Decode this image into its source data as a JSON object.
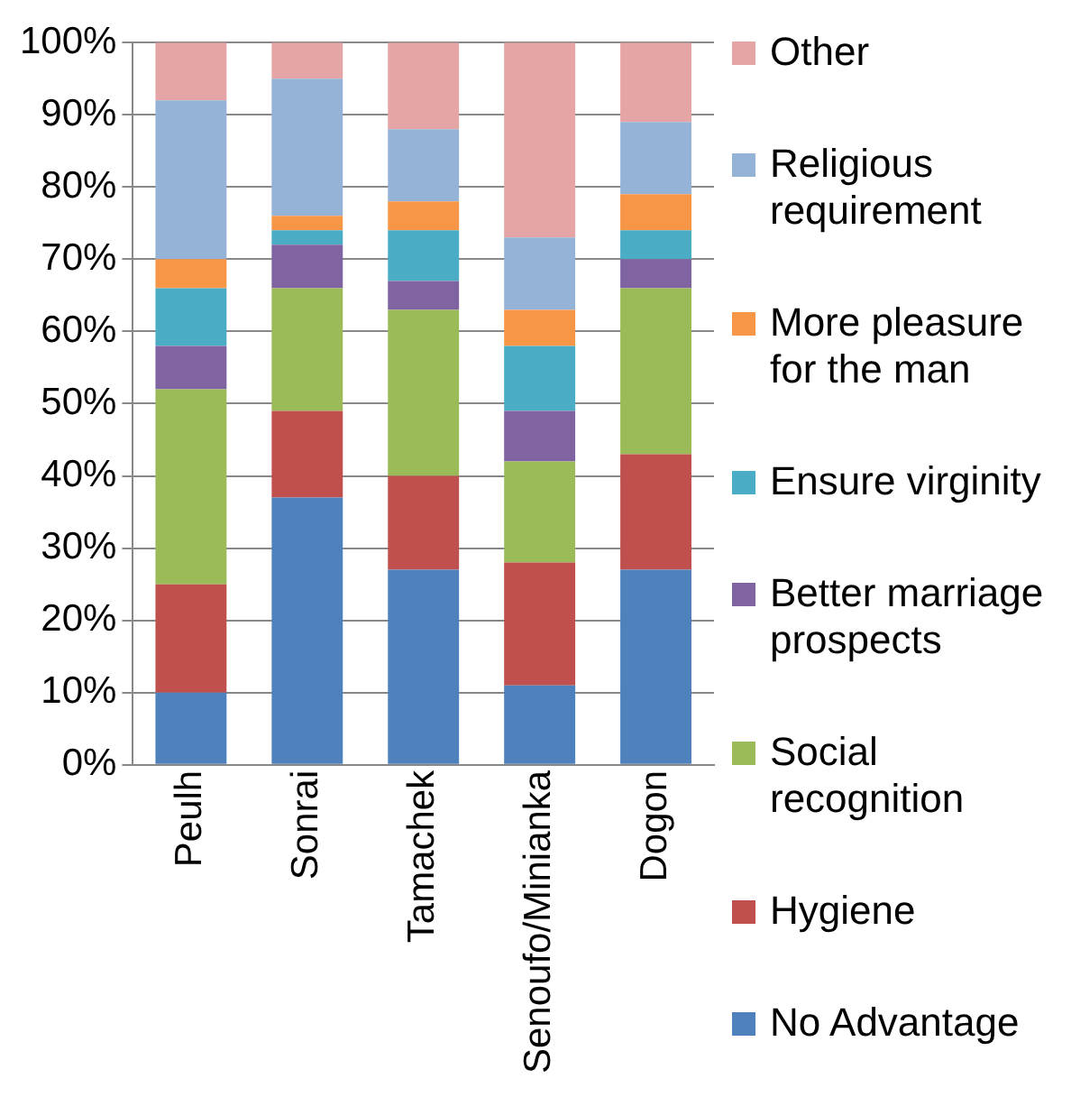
{
  "chart_data": {
    "type": "bar",
    "stacked": true,
    "categories": [
      "Peulh",
      "Sonrai",
      "Tamachek",
      "Senoufo/Minianka",
      "Dogon"
    ],
    "ylim": [
      0,
      100
    ],
    "yticks": [
      {
        "value": 0,
        "label": "0%"
      },
      {
        "value": 10,
        "label": "10%"
      },
      {
        "value": 20,
        "label": "20%"
      },
      {
        "value": 30,
        "label": "30%"
      },
      {
        "value": 40,
        "label": "40%"
      },
      {
        "value": 50,
        "label": "50%"
      },
      {
        "value": 60,
        "label": "60%"
      },
      {
        "value": 70,
        "label": "70%"
      },
      {
        "value": 80,
        "label": "80%"
      },
      {
        "value": 90,
        "label": "90%"
      },
      {
        "value": 100,
        "label": "100%"
      }
    ],
    "grid": "y",
    "legend": "right",
    "series": [
      {
        "name": "No Advantage",
        "color": "#4f81bd",
        "values": [
          10,
          37,
          27,
          11,
          27
        ]
      },
      {
        "name": "Hygiene",
        "color": "#c0504d",
        "values": [
          15,
          12,
          13,
          17,
          16
        ]
      },
      {
        "name": "Social recognition",
        "color": "#9bbb59",
        "values": [
          27,
          17,
          23,
          14,
          23
        ]
      },
      {
        "name": "Better marriage prospects",
        "color": "#8064a2",
        "values": [
          6,
          6,
          4,
          7,
          4
        ]
      },
      {
        "name": "Ensure virginity",
        "color": "#4bacc6",
        "values": [
          8,
          2,
          7,
          9,
          4
        ]
      },
      {
        "name": "More pleasure for the man",
        "color": "#f79646",
        "values": [
          4,
          2,
          4,
          5,
          5
        ]
      },
      {
        "name": "Religious requirement",
        "color": "#95b3d7",
        "values": [
          22,
          19,
          10,
          10,
          10
        ]
      },
      {
        "name": "Other",
        "color": "#e6a5a5",
        "values": [
          8,
          5,
          12,
          27,
          11
        ]
      }
    ]
  }
}
